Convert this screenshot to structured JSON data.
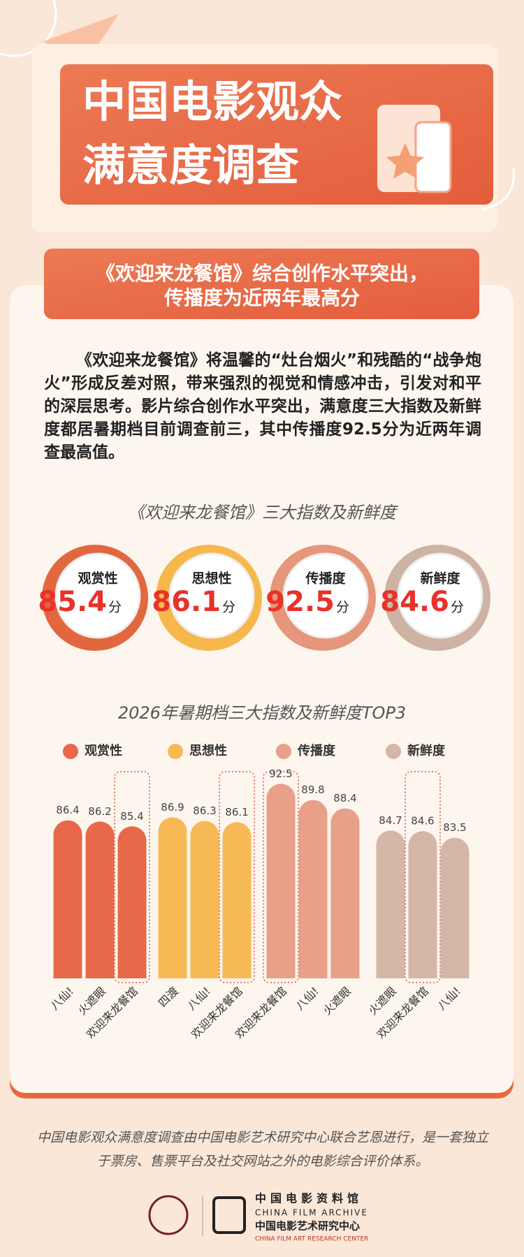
{
  "header": {
    "title_lines": [
      "中国电影观众",
      "满意度调查"
    ]
  },
  "subtitle_lines": [
    "《欢迎来龙餐馆》综合创作水平突出，",
    "传播度为近两年最高分"
  ],
  "body": "《欢迎来龙餐馆》将温馨的“灶台烟火”和残酷的“战争炮火”形成反差对照，带来强烈的视觉和情感冲击，引发对和平的深层思考。影片综合创作水平突出，满意度三大指数及新鲜度都居暑期档目前调查前三，其中传播度92.5分为近两年调查最高值。",
  "scores": {
    "title": "《欢迎来龙餐馆》三大指数及新鲜度",
    "items": [
      {
        "name": "观赏性",
        "value": 85.4,
        "unit": "分",
        "color": "#e2673f"
      },
      {
        "name": "思想性",
        "value": 86.1,
        "unit": "分",
        "color": "#f6b84d"
      },
      {
        "name": "传播度",
        "value": 92.5,
        "unit": "分",
        "color": "#e6967a"
      },
      {
        "name": "新鲜度",
        "value": 84.6,
        "unit": "分",
        "color": "#cdb3a3"
      }
    ]
  },
  "chart_data": {
    "type": "bar",
    "title": "2026年暑期档三大指数及新鲜度TOP3",
    "ylim": [
      60,
      95
    ],
    "series": [
      {
        "name": "观赏性",
        "color": "#e8694a",
        "categories": [
          "八仙!",
          "火遮眼",
          "欢迎来龙餐馆"
        ],
        "values": [
          86.4,
          86.2,
          85.4
        ]
      },
      {
        "name": "思想性",
        "color": "#f7b955",
        "categories": [
          "四渡",
          "八仙!",
          "欢迎来龙餐馆"
        ],
        "values": [
          86.9,
          86.3,
          86.1
        ]
      },
      {
        "name": "传播度",
        "color": "#e8a088",
        "categories": [
          "欢迎来龙餐馆",
          "八仙!",
          "火遮眼"
        ],
        "values": [
          92.5,
          89.8,
          88.4
        ]
      },
      {
        "name": "新鲜度",
        "color": "#d4b7a6",
        "categories": [
          "火遮眼",
          "欢迎来龙餐馆",
          "八仙!"
        ],
        "values": [
          84.7,
          84.6,
          83.5
        ]
      }
    ]
  },
  "footer": {
    "note": "中国电影观众满意度调查由中国电影艺术研究中心联合艺恩进行，是一套独立于票房、售票平台及社交网站之外的电影综合评价体系。",
    "org_lines": [
      "中国电影资料馆",
      "CHINA FILM ARCHIVE",
      "中国电影艺术研究中心",
      "CHINA FILM ART RESEARCH CENTER"
    ]
  }
}
